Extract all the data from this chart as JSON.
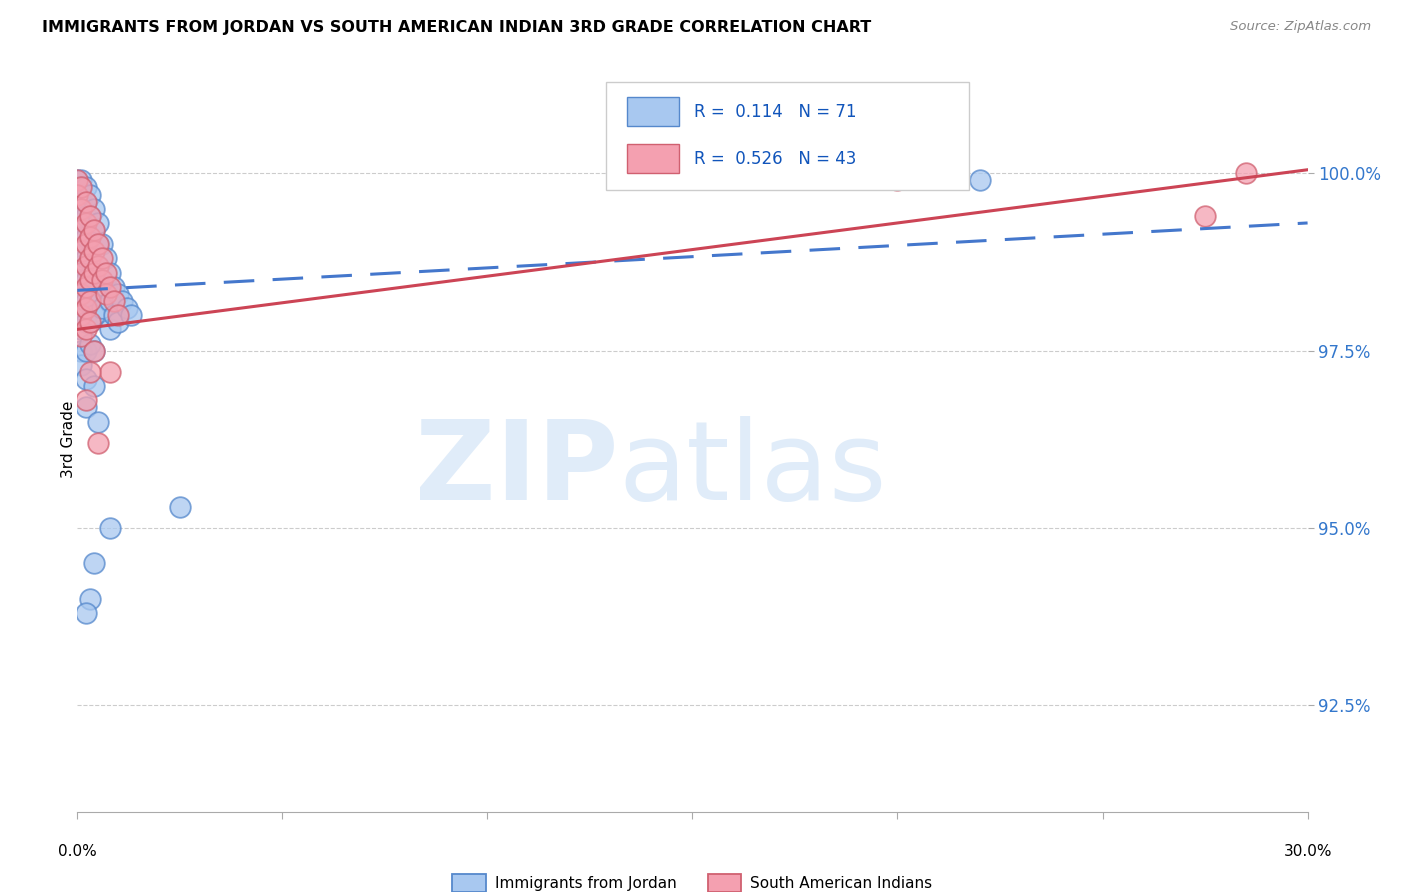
{
  "title": "IMMIGRANTS FROM JORDAN VS SOUTH AMERICAN INDIAN 3RD GRADE CORRELATION CHART",
  "source": "Source: ZipAtlas.com",
  "ylabel": "3rd Grade",
  "r1": 0.114,
  "n1": 71,
  "r2": 0.526,
  "n2": 43,
  "legend1_label": "Immigrants from Jordan",
  "legend2_label": "South American Indians",
  "blue_fill": "#A8C8F0",
  "blue_edge": "#5588CC",
  "pink_fill": "#F4A0B0",
  "pink_edge": "#D06070",
  "blue_line": "#4477CC",
  "pink_line": "#CC4455",
  "xlim": [
    0.0,
    0.3
  ],
  "ylim": [
    91.0,
    101.5
  ],
  "yticks": [
    92.5,
    95.0,
    97.5,
    100.0
  ],
  "blue_scatter": [
    [
      0.0,
      99.9
    ],
    [
      0.0,
      99.8
    ],
    [
      0.0,
      99.7
    ],
    [
      0.0,
      99.5
    ],
    [
      0.001,
      99.9
    ],
    [
      0.001,
      99.8
    ],
    [
      0.001,
      99.7
    ],
    [
      0.001,
      99.6
    ],
    [
      0.001,
      99.5
    ],
    [
      0.001,
      99.3
    ],
    [
      0.001,
      99.1
    ],
    [
      0.001,
      98.9
    ],
    [
      0.001,
      98.7
    ],
    [
      0.001,
      98.5
    ],
    [
      0.001,
      98.3
    ],
    [
      0.001,
      98.0
    ],
    [
      0.001,
      97.8
    ],
    [
      0.001,
      97.5
    ],
    [
      0.001,
      97.3
    ],
    [
      0.002,
      99.8
    ],
    [
      0.002,
      99.6
    ],
    [
      0.002,
      99.4
    ],
    [
      0.002,
      99.1
    ],
    [
      0.002,
      98.8
    ],
    [
      0.002,
      98.5
    ],
    [
      0.002,
      98.2
    ],
    [
      0.002,
      97.9
    ],
    [
      0.002,
      97.5
    ],
    [
      0.002,
      97.1
    ],
    [
      0.002,
      96.7
    ],
    [
      0.003,
      99.7
    ],
    [
      0.003,
      99.4
    ],
    [
      0.003,
      99.1
    ],
    [
      0.003,
      98.8
    ],
    [
      0.003,
      98.5
    ],
    [
      0.003,
      98.2
    ],
    [
      0.003,
      97.9
    ],
    [
      0.003,
      97.6
    ],
    [
      0.004,
      99.5
    ],
    [
      0.004,
      99.2
    ],
    [
      0.004,
      98.9
    ],
    [
      0.004,
      98.6
    ],
    [
      0.004,
      98.0
    ],
    [
      0.004,
      97.5
    ],
    [
      0.005,
      99.3
    ],
    [
      0.005,
      99.0
    ],
    [
      0.005,
      98.7
    ],
    [
      0.006,
      99.0
    ],
    [
      0.006,
      98.5
    ],
    [
      0.006,
      98.1
    ],
    [
      0.007,
      98.8
    ],
    [
      0.007,
      98.4
    ],
    [
      0.008,
      98.6
    ],
    [
      0.008,
      98.2
    ],
    [
      0.008,
      97.8
    ],
    [
      0.009,
      98.4
    ],
    [
      0.009,
      98.0
    ],
    [
      0.01,
      98.3
    ],
    [
      0.01,
      97.9
    ],
    [
      0.011,
      98.2
    ],
    [
      0.012,
      98.1
    ],
    [
      0.013,
      98.0
    ],
    [
      0.008,
      95.0
    ],
    [
      0.004,
      94.5
    ],
    [
      0.003,
      94.0
    ],
    [
      0.002,
      93.8
    ],
    [
      0.004,
      97.0
    ],
    [
      0.005,
      96.5
    ],
    [
      0.025,
      95.3
    ],
    [
      0.17,
      100.0
    ],
    [
      0.22,
      99.9
    ]
  ],
  "pink_scatter": [
    [
      0.0,
      99.9
    ],
    [
      0.0,
      99.7
    ],
    [
      0.001,
      99.8
    ],
    [
      0.001,
      99.5
    ],
    [
      0.001,
      99.2
    ],
    [
      0.001,
      98.9
    ],
    [
      0.001,
      98.6
    ],
    [
      0.001,
      98.3
    ],
    [
      0.001,
      98.0
    ],
    [
      0.001,
      97.7
    ],
    [
      0.002,
      99.6
    ],
    [
      0.002,
      99.3
    ],
    [
      0.002,
      99.0
    ],
    [
      0.002,
      98.7
    ],
    [
      0.002,
      98.4
    ],
    [
      0.002,
      98.1
    ],
    [
      0.002,
      97.8
    ],
    [
      0.003,
      99.4
    ],
    [
      0.003,
      99.1
    ],
    [
      0.003,
      98.8
    ],
    [
      0.003,
      98.5
    ],
    [
      0.003,
      98.2
    ],
    [
      0.003,
      97.9
    ],
    [
      0.004,
      99.2
    ],
    [
      0.004,
      98.9
    ],
    [
      0.004,
      98.6
    ],
    [
      0.004,
      97.5
    ],
    [
      0.005,
      99.0
    ],
    [
      0.005,
      98.7
    ],
    [
      0.005,
      96.2
    ],
    [
      0.006,
      98.8
    ],
    [
      0.006,
      98.5
    ],
    [
      0.007,
      98.6
    ],
    [
      0.007,
      98.3
    ],
    [
      0.008,
      98.4
    ],
    [
      0.008,
      97.2
    ],
    [
      0.009,
      98.2
    ],
    [
      0.01,
      98.0
    ],
    [
      0.003,
      97.2
    ],
    [
      0.002,
      96.8
    ],
    [
      0.2,
      99.9
    ],
    [
      0.285,
      100.0
    ],
    [
      0.275,
      99.4
    ]
  ]
}
